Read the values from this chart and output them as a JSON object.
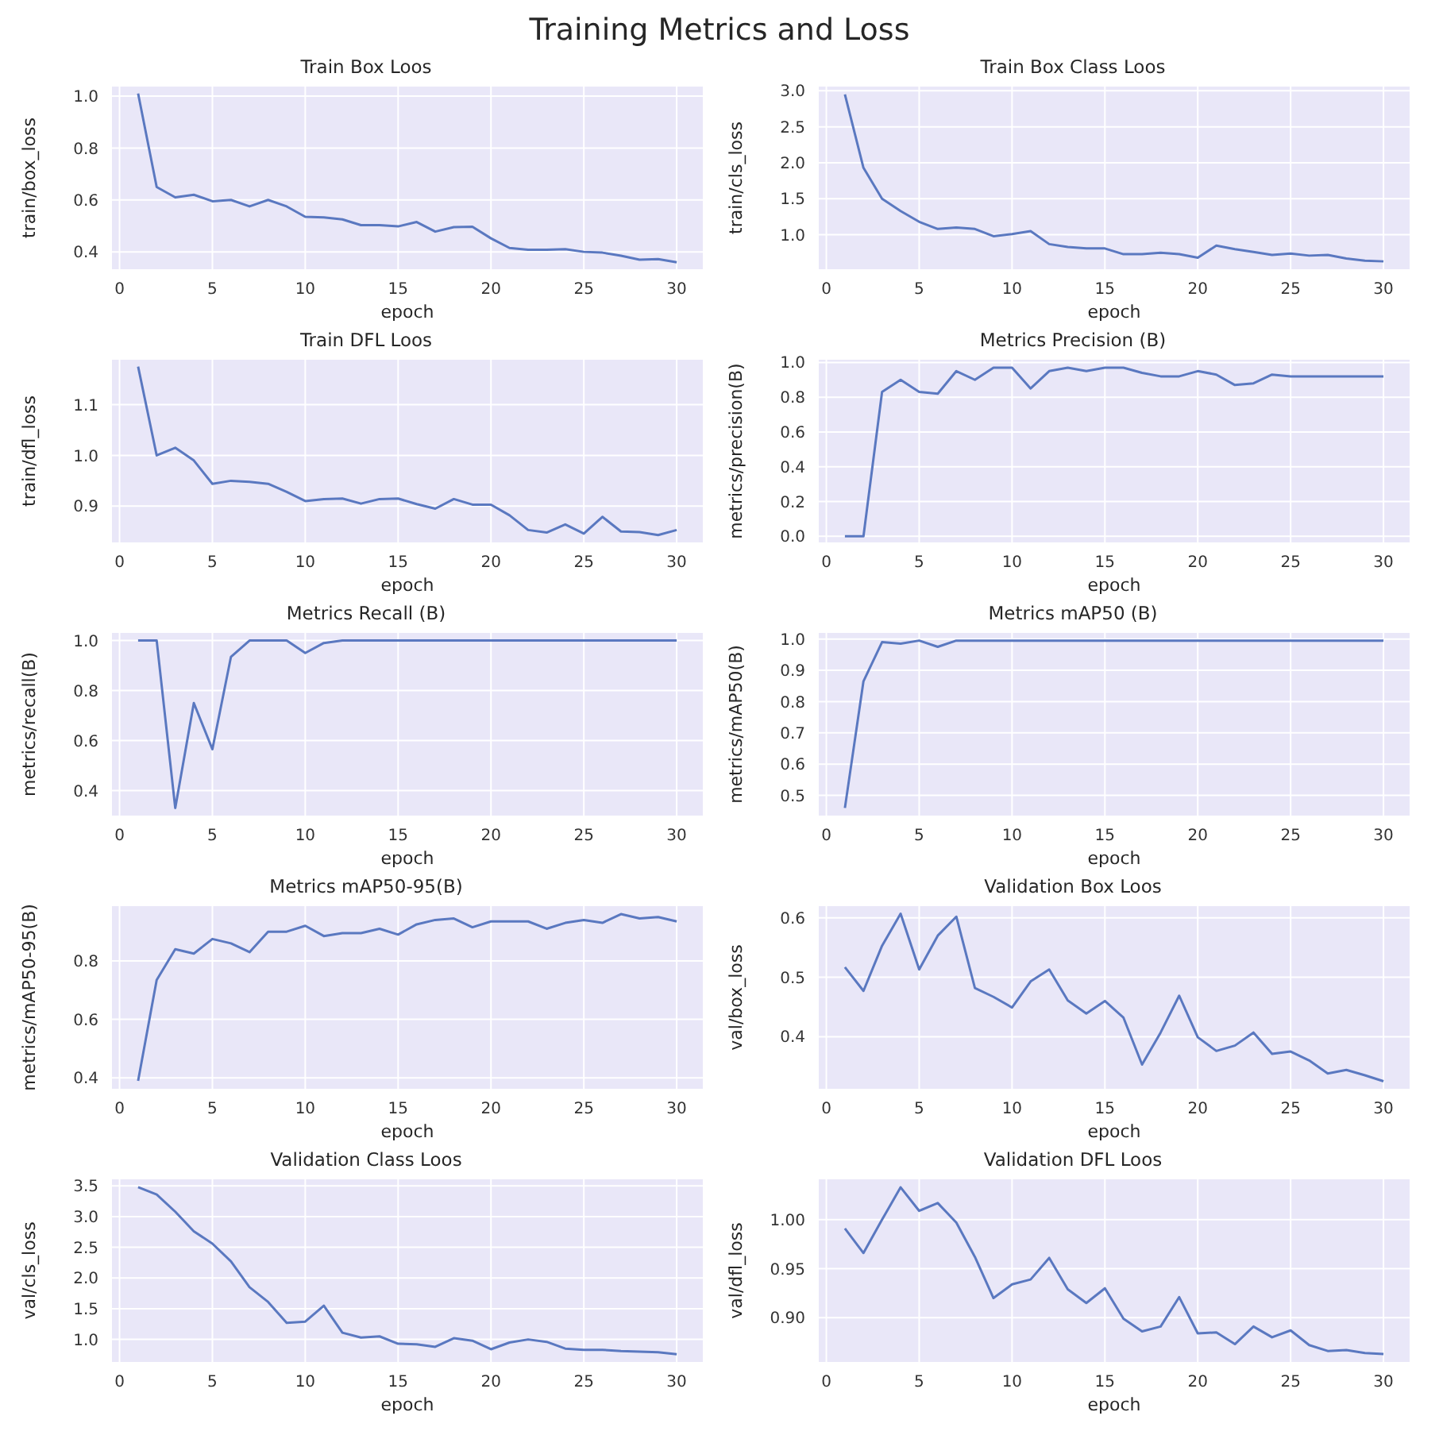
{
  "chart_data": [
    {
      "type": "line",
      "title": "Train Box Loos",
      "xlabel": "epoch",
      "ylabel": "train/box_loss",
      "annotations": [
        "Training Metrics and Loss"
      ],
      "x": [
        1,
        2,
        3,
        4,
        5,
        6,
        7,
        8,
        9,
        10,
        11,
        12,
        13,
        14,
        15,
        16,
        17,
        18,
        19,
        20,
        21,
        22,
        23,
        24,
        25,
        26,
        27,
        28,
        29,
        30
      ],
      "series": [
        {
          "color": "#5a78c0",
          "values": [
            1.01,
            0.65,
            0.61,
            0.62,
            0.595,
            0.6,
            0.575,
            0.6,
            0.575,
            0.535,
            0.533,
            0.525,
            0.503,
            0.503,
            0.498,
            0.515,
            0.478,
            0.495,
            0.497,
            0.452,
            0.415,
            0.408,
            0.408,
            0.41,
            0.4,
            0.397,
            0.385,
            0.37,
            0.372,
            0.36
          ]
        }
      ],
      "xlim": [
        -0.45,
        31.45
      ],
      "xticks": [
        0,
        5,
        10,
        15,
        20,
        25,
        30
      ],
      "ylim": [
        0.33,
        1.04
      ],
      "yticks": [
        0.4,
        0.6,
        0.8,
        {
          "value": 1,
          "label": "1.0"
        }
      ],
      "grid": true
    },
    {
      "type": "line",
      "title": "Train Box Class Loos",
      "xlabel": "epoch",
      "ylabel": "train/cls_loss",
      "x": [
        1,
        2,
        3,
        4,
        5,
        6,
        7,
        8,
        9,
        10,
        11,
        12,
        13,
        14,
        15,
        16,
        17,
        18,
        19,
        20,
        21,
        22,
        23,
        24,
        25,
        26,
        27,
        28,
        29,
        30
      ],
      "series": [
        {
          "color": "#5a78c0",
          "values": [
            2.95,
            1.93,
            1.5,
            1.33,
            1.18,
            1.08,
            1.1,
            1.08,
            0.98,
            1.01,
            1.05,
            0.87,
            0.83,
            0.81,
            0.81,
            0.73,
            0.73,
            0.75,
            0.73,
            0.68,
            0.85,
            0.8,
            0.76,
            0.72,
            0.74,
            0.71,
            0.72,
            0.67,
            0.64,
            0.63
          ]
        }
      ],
      "xlim": [
        -0.45,
        31.45
      ],
      "xticks": [
        0,
        5,
        10,
        15,
        20,
        25,
        30
      ],
      "ylim": [
        0.51,
        3.07
      ],
      "yticks": [
        {
          "value": 1,
          "label": "1.0"
        },
        1.5,
        {
          "value": 2,
          "label": "2.0"
        },
        2.5,
        {
          "value": 3,
          "label": "3.0"
        }
      ],
      "grid": true
    },
    {
      "type": "line",
      "title": "Train DFL Loos",
      "xlabel": "epoch",
      "ylabel": "train/dfl_loss",
      "x": [
        1,
        2,
        3,
        4,
        5,
        6,
        7,
        8,
        9,
        10,
        11,
        12,
        13,
        14,
        15,
        16,
        17,
        18,
        19,
        20,
        21,
        22,
        23,
        24,
        25,
        26,
        27,
        28,
        29,
        30
      ],
      "series": [
        {
          "color": "#5a78c0",
          "values": [
            1.175,
            1.0,
            1.015,
            0.99,
            0.944,
            0.95,
            0.948,
            0.944,
            0.928,
            0.91,
            0.914,
            0.915,
            0.905,
            0.914,
            0.915,
            0.904,
            0.895,
            0.914,
            0.903,
            0.903,
            0.882,
            0.853,
            0.848,
            0.864,
            0.846,
            0.879,
            0.85,
            0.849,
            0.843,
            0.853
          ]
        }
      ],
      "xlim": [
        -0.45,
        31.45
      ],
      "xticks": [
        0,
        5,
        10,
        15,
        20,
        25,
        30
      ],
      "ylim": [
        0.827,
        1.19
      ],
      "yticks": [
        0.9,
        {
          "value": 1,
          "label": "1.0"
        },
        1.1
      ],
      "grid": true
    },
    {
      "type": "line",
      "title": "Metrics Precision (B)",
      "xlabel": "epoch",
      "ylabel": "metrics/precision(B)",
      "x": [
        1,
        2,
        3,
        4,
        5,
        6,
        7,
        8,
        9,
        10,
        11,
        12,
        13,
        14,
        15,
        16,
        17,
        18,
        19,
        20,
        21,
        22,
        23,
        24,
        25,
        26,
        27,
        28,
        29,
        30
      ],
      "series": [
        {
          "color": "#5a78c0",
          "values": [
            0.0,
            0.0,
            0.83,
            0.9,
            0.83,
            0.82,
            0.95,
            0.9,
            0.97,
            0.97,
            0.85,
            0.95,
            0.97,
            0.95,
            0.97,
            0.97,
            0.94,
            0.92,
            0.92,
            0.95,
            0.93,
            0.87,
            0.88,
            0.93,
            0.92,
            0.92,
            0.92,
            0.92,
            0.92,
            0.92
          ]
        }
      ],
      "xlim": [
        -0.45,
        31.45
      ],
      "xticks": [
        0,
        5,
        10,
        15,
        20,
        25,
        30
      ],
      "ylim": [
        -0.04,
        1.02
      ],
      "yticks": [
        {
          "value": 0,
          "label": "0.0"
        },
        0.2,
        0.4,
        0.6,
        0.8,
        {
          "value": 1,
          "label": "1.0"
        }
      ],
      "grid": true
    },
    {
      "type": "line",
      "title": "Metrics Recall (B)",
      "xlabel": "epoch",
      "ylabel": "metrics/recall(B)",
      "x": [
        1,
        2,
        3,
        4,
        5,
        6,
        7,
        8,
        9,
        10,
        11,
        12,
        13,
        14,
        15,
        16,
        17,
        18,
        19,
        20,
        21,
        22,
        23,
        24,
        25,
        26,
        27,
        28,
        29,
        30
      ],
      "series": [
        {
          "color": "#5a78c0",
          "values": [
            1.0,
            1.0,
            0.33,
            0.75,
            0.565,
            0.935,
            1.0,
            1.0,
            1.0,
            0.95,
            0.99,
            1.0,
            1.0,
            1.0,
            1.0,
            1.0,
            1.0,
            1.0,
            1.0,
            1.0,
            1.0,
            1.0,
            1.0,
            1.0,
            1.0,
            1.0,
            1.0,
            1.0,
            1.0,
            1.0
          ]
        }
      ],
      "xlim": [
        -0.45,
        31.45
      ],
      "xticks": [
        0,
        5,
        10,
        15,
        20,
        25,
        30
      ],
      "ylim": [
        0.2965,
        1.0335
      ],
      "yticks": [
        0.4,
        0.6,
        0.8,
        {
          "value": 1,
          "label": "1.0"
        }
      ],
      "grid": true
    },
    {
      "type": "line",
      "title": "Metrics mAP50 (B)",
      "xlabel": "epoch",
      "ylabel": "metrics/mAP50(B)",
      "x": [
        1,
        2,
        3,
        4,
        5,
        6,
        7,
        8,
        9,
        10,
        11,
        12,
        13,
        14,
        15,
        16,
        17,
        18,
        19,
        20,
        21,
        22,
        23,
        24,
        25,
        26,
        27,
        28,
        29,
        30
      ],
      "series": [
        {
          "color": "#5a78c0",
          "values": [
            0.46,
            0.865,
            0.99,
            0.985,
            0.995,
            0.975,
            0.995,
            0.995,
            0.995,
            0.995,
            0.995,
            0.995,
            0.995,
            0.995,
            0.995,
            0.995,
            0.995,
            0.995,
            0.995,
            0.995,
            0.995,
            0.995,
            0.995,
            0.995,
            0.995,
            0.995,
            0.995,
            0.995,
            0.995,
            0.995
          ]
        }
      ],
      "xlim": [
        -0.45,
        31.45
      ],
      "xticks": [
        0,
        5,
        10,
        15,
        20,
        25,
        30
      ],
      "ylim": [
        0.433,
        1.022
      ],
      "yticks": [
        0.5,
        0.6,
        0.7,
        0.8,
        0.9,
        {
          "value": 1,
          "label": "1.0"
        }
      ],
      "grid": true
    },
    {
      "type": "line",
      "title": "Metrics mAP50-95(B)",
      "xlabel": "epoch",
      "ylabel": "metrics/mAP50-95(B)",
      "x": [
        1,
        2,
        3,
        4,
        5,
        6,
        7,
        8,
        9,
        10,
        11,
        12,
        13,
        14,
        15,
        16,
        17,
        18,
        19,
        20,
        21,
        22,
        23,
        24,
        25,
        26,
        27,
        28,
        29,
        30
      ],
      "series": [
        {
          "color": "#5a78c0",
          "values": [
            0.39,
            0.735,
            0.84,
            0.825,
            0.875,
            0.86,
            0.83,
            0.9,
            0.9,
            0.92,
            0.885,
            0.895,
            0.895,
            0.91,
            0.89,
            0.925,
            0.94,
            0.945,
            0.915,
            0.935,
            0.935,
            0.935,
            0.91,
            0.93,
            0.94,
            0.93,
            0.96,
            0.945,
            0.95,
            0.935
          ]
        }
      ],
      "xlim": [
        -0.45,
        31.45
      ],
      "xticks": [
        0,
        5,
        10,
        15,
        20,
        25,
        30
      ],
      "ylim": [
        0.36,
        0.99
      ],
      "yticks": [
        0.4,
        0.6,
        0.8
      ],
      "grid": true
    },
    {
      "type": "line",
      "title": "Validation Box Loos",
      "xlabel": "epoch",
      "ylabel": "val/box_loss",
      "x": [
        1,
        2,
        3,
        4,
        5,
        6,
        7,
        8,
        9,
        10,
        11,
        12,
        13,
        14,
        15,
        16,
        17,
        18,
        19,
        20,
        21,
        22,
        23,
        24,
        25,
        26,
        27,
        28,
        29,
        30
      ],
      "series": [
        {
          "color": "#5a78c0",
          "values": [
            0.517,
            0.477,
            0.553,
            0.607,
            0.513,
            0.57,
            0.602,
            0.482,
            0.467,
            0.449,
            0.493,
            0.513,
            0.461,
            0.439,
            0.46,
            0.432,
            0.353,
            0.407,
            0.469,
            0.399,
            0.376,
            0.385,
            0.407,
            0.371,
            0.375,
            0.36,
            0.338,
            0.344,
            0.335,
            0.325
          ]
        }
      ],
      "xlim": [
        -0.45,
        31.45
      ],
      "xticks": [
        0,
        5,
        10,
        15,
        20,
        25,
        30
      ],
      "ylim": [
        0.311,
        0.621
      ],
      "yticks": [
        0.4,
        0.5,
        0.6
      ],
      "grid": true
    },
    {
      "type": "line",
      "title": "Validation Class Loos",
      "xlabel": "epoch",
      "ylabel": "val/cls_loss",
      "x": [
        1,
        2,
        3,
        4,
        5,
        6,
        7,
        8,
        9,
        10,
        11,
        12,
        13,
        14,
        15,
        16,
        17,
        18,
        19,
        20,
        21,
        22,
        23,
        24,
        25,
        26,
        27,
        28,
        29,
        30
      ],
      "series": [
        {
          "color": "#5a78c0",
          "values": [
            3.48,
            3.36,
            3.08,
            2.76,
            2.56,
            2.27,
            1.85,
            1.61,
            1.27,
            1.29,
            1.55,
            1.11,
            1.03,
            1.05,
            0.93,
            0.92,
            0.88,
            1.02,
            0.98,
            0.84,
            0.95,
            1.0,
            0.96,
            0.85,
            0.83,
            0.83,
            0.81,
            0.8,
            0.79,
            0.76
          ]
        }
      ],
      "xlim": [
        -0.45,
        31.45
      ],
      "xticks": [
        0,
        5,
        10,
        15,
        20,
        25,
        30
      ],
      "ylim": [
        0.62,
        3.62
      ],
      "yticks": [
        {
          "value": 1,
          "label": "1.0"
        },
        1.5,
        {
          "value": 2,
          "label": "2.0"
        },
        2.5,
        {
          "value": 3,
          "label": "3.0"
        },
        3.5
      ],
      "grid": true
    },
    {
      "type": "line",
      "title": "Validation DFL Loos",
      "xlabel": "epoch",
      "ylabel": "val/dfl_loss",
      "x": [
        1,
        2,
        3,
        4,
        5,
        6,
        7,
        8,
        9,
        10,
        11,
        12,
        13,
        14,
        15,
        16,
        17,
        18,
        19,
        20,
        21,
        22,
        23,
        24,
        25,
        26,
        27,
        28,
        29,
        30
      ],
      "series": [
        {
          "color": "#5a78c0",
          "values": [
            0.991,
            0.966,
            1.0,
            1.033,
            1.009,
            1.017,
            0.997,
            0.962,
            0.92,
            0.934,
            0.939,
            0.961,
            0.929,
            0.915,
            0.93,
            0.899,
            0.886,
            0.891,
            0.921,
            0.884,
            0.885,
            0.873,
            0.891,
            0.88,
            0.887,
            0.872,
            0.866,
            0.867,
            0.864,
            0.863
          ]
        }
      ],
      "xlim": [
        -0.45,
        31.45
      ],
      "xticks": [
        0,
        5,
        10,
        15,
        20,
        25,
        30
      ],
      "ylim": [
        0.854,
        1.042
      ],
      "yticks": [
        {
          "value": 0.9,
          "label": "0.90"
        },
        {
          "value": 0.95,
          "label": "0.95"
        },
        {
          "value": 1.0,
          "label": "1.00"
        }
      ],
      "grid": true
    }
  ]
}
